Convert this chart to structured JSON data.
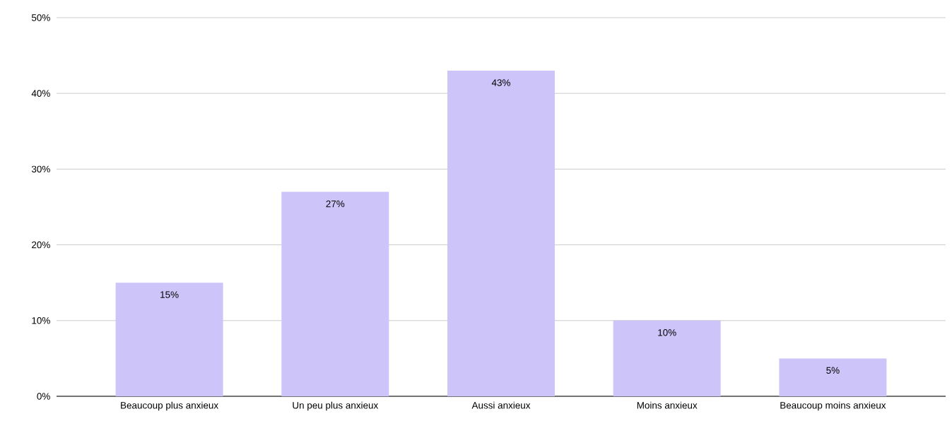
{
  "chart_data": {
    "type": "bar",
    "categories": [
      "Beaucoup plus anxieux",
      "Un peu plus anxieux",
      "Aussi anxieux",
      "Moins anxieux",
      "Beaucoup moins anxieux"
    ],
    "values": [
      15,
      27,
      43,
      10,
      5
    ],
    "value_labels": [
      "15%",
      "27%",
      "43%",
      "10%",
      "5%"
    ],
    "color": "#cdc5f9",
    "ylim": [
      0,
      50
    ],
    "yticks": [
      {
        "value": 0,
        "label": "0%"
      },
      {
        "value": 10,
        "label": "10%"
      },
      {
        "value": 20,
        "label": "20%"
      },
      {
        "value": 30,
        "label": "30%"
      },
      {
        "value": 40,
        "label": "40%"
      },
      {
        "value": 50,
        "label": "50%"
      }
    ],
    "grid": "y"
  }
}
